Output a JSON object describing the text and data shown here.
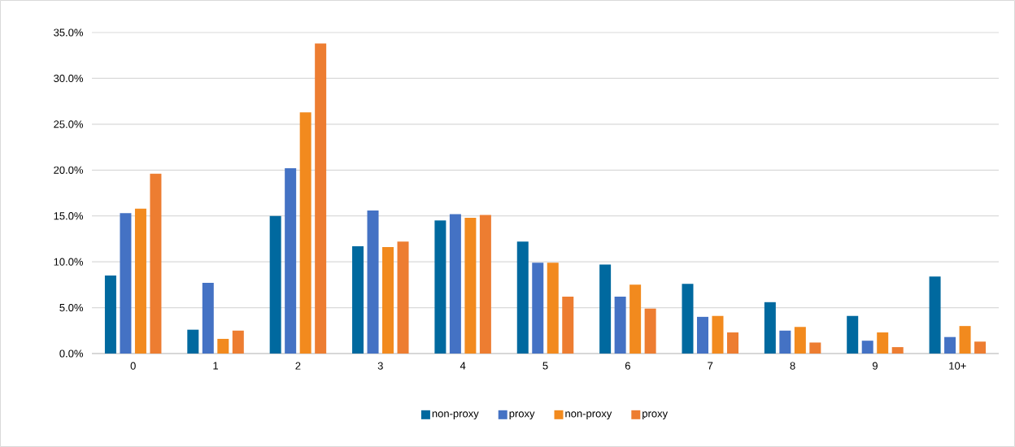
{
  "chart_data": {
    "type": "bar",
    "categories": [
      "0",
      "1",
      "2",
      "3",
      "4",
      "5",
      "6",
      "7",
      "8",
      "9",
      "10+"
    ],
    "series": [
      {
        "name": "non-proxy",
        "color": "#00699f",
        "values": [
          8.5,
          2.6,
          15.0,
          11.7,
          14.5,
          12.2,
          9.7,
          7.6,
          5.6,
          4.1,
          8.4
        ]
      },
      {
        "name": "proxy",
        "color": "#4472c4",
        "values": [
          15.3,
          7.7,
          20.2,
          15.6,
          15.2,
          9.9,
          6.2,
          4.0,
          2.5,
          1.4,
          1.8
        ]
      },
      {
        "name": "non-proxy",
        "color": "#f28a1e",
        "values": [
          15.8,
          1.6,
          26.3,
          11.6,
          14.8,
          9.9,
          7.5,
          4.1,
          2.9,
          2.3,
          3.0
        ]
      },
      {
        "name": "proxy",
        "color": "#ed7d31",
        "values": [
          19.6,
          2.5,
          33.8,
          12.2,
          15.1,
          6.2,
          4.9,
          2.3,
          1.2,
          0.7,
          1.3
        ]
      }
    ],
    "ylim": [
      0,
      35
    ],
    "yticks": [
      {
        "value": 0,
        "label": "0.0%"
      },
      {
        "value": 5,
        "label": "5.0%"
      },
      {
        "value": 10,
        "label": "10.0%"
      },
      {
        "value": 15,
        "label": "15.0%"
      },
      {
        "value": 20,
        "label": "20.0%"
      },
      {
        "value": 25,
        "label": "25.0%"
      },
      {
        "value": 30,
        "label": "30.0%"
      },
      {
        "value": 35,
        "label": "35.0%"
      }
    ],
    "grid": "y",
    "legend": "bottom"
  }
}
